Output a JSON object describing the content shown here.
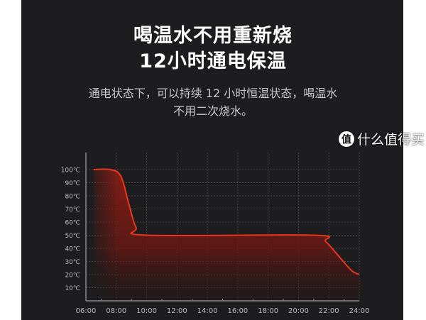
{
  "header": {
    "title_line1": "喝温水不用重新烧",
    "title_line2": "12小时通电保温",
    "subtitle_line1": "通电状态下，可以持续 12 小时恒温状态，喝温水",
    "subtitle_line2": "不用二次烧水。"
  },
  "watermark": {
    "badge": "值",
    "text": "什么值得买"
  },
  "colors": {
    "background": "#1d1d1f",
    "curve": "#e8361f",
    "fill": "#7a1a14"
  },
  "chart_data": {
    "type": "area",
    "title": "",
    "xlabel": "",
    "ylabel": "",
    "x_ticks": [
      "06:00",
      "08:00",
      "10:00",
      "12:00",
      "14:00",
      "16:00",
      "18:00",
      "20:00",
      "22:00",
      "24:00"
    ],
    "y_ticks": [
      "10℃",
      "20℃",
      "30℃",
      "40℃",
      "50℃",
      "60℃",
      "70℃",
      "80℃",
      "90℃",
      "100℃"
    ],
    "xlim_hours": [
      6,
      24
    ],
    "ylim": [
      0,
      105
    ],
    "grid": true,
    "points": [
      [
        6.5,
        100
      ],
      [
        7.6,
        100
      ],
      [
        8.3,
        95
      ],
      [
        8.8,
        75
      ],
      [
        9.3,
        56
      ],
      [
        10,
        50
      ],
      [
        21,
        50
      ],
      [
        21.8,
        45
      ],
      [
        22.8,
        32
      ],
      [
        23.5,
        23
      ],
      [
        24,
        20
      ]
    ]
  }
}
